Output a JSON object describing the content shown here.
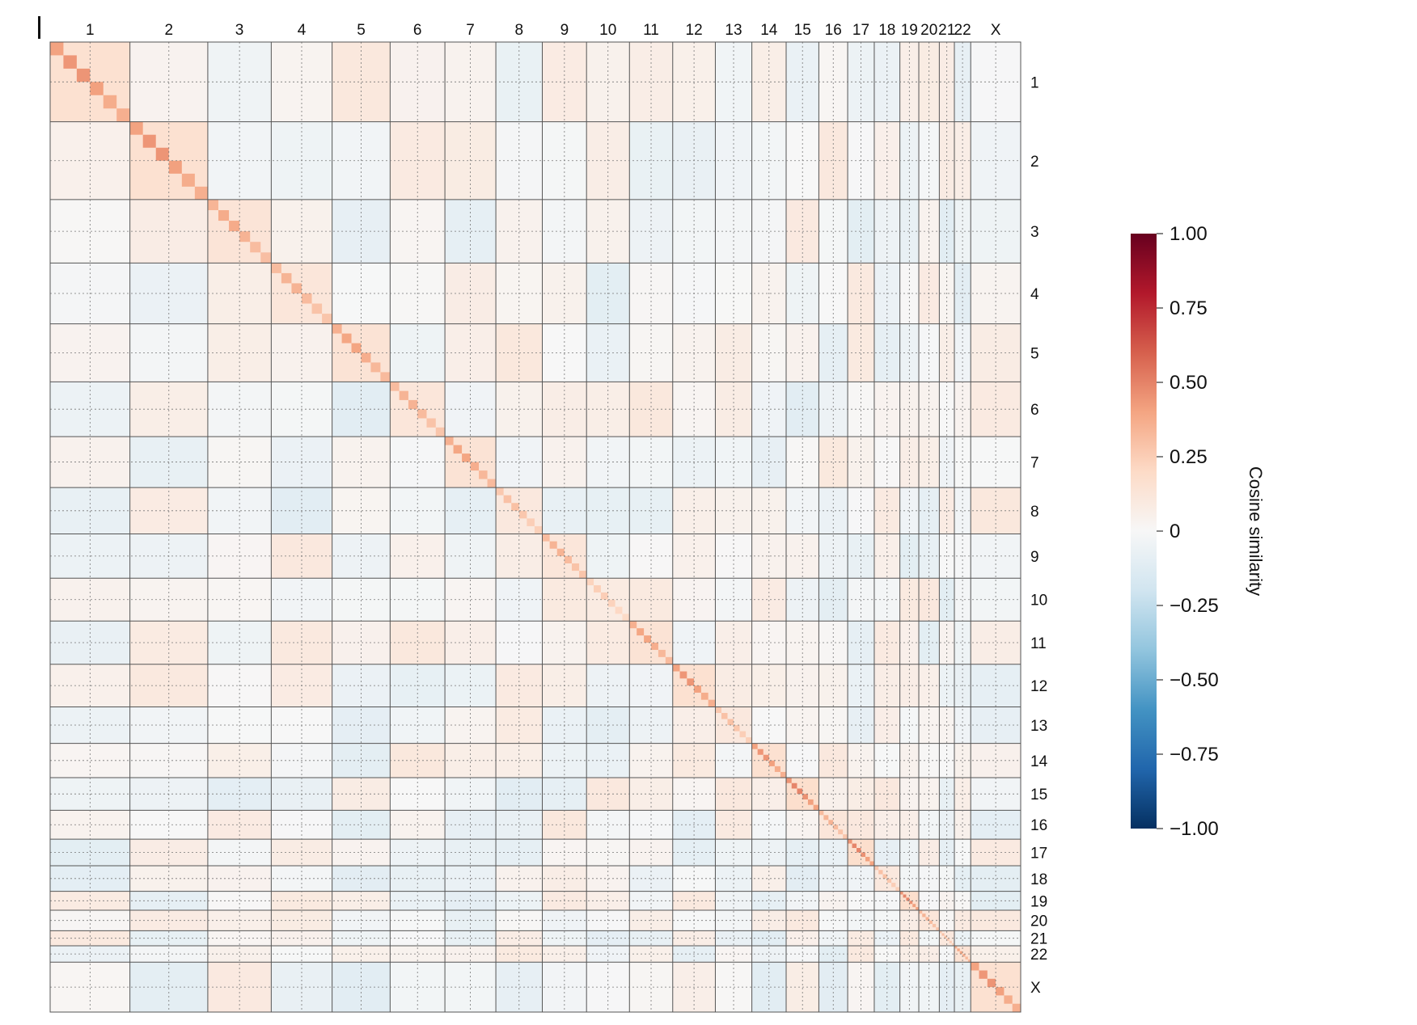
{
  "chart_data": {
    "type": "heatmap",
    "title": "",
    "xlabel": "",
    "ylabel": "",
    "categories": [
      "1",
      "2",
      "3",
      "4",
      "5",
      "6",
      "7",
      "8",
      "9",
      "10",
      "11",
      "12",
      "13",
      "14",
      "15",
      "16",
      "17",
      "18",
      "19",
      "20",
      "21",
      "22",
      "X"
    ],
    "row_categories": [
      "1",
      "2",
      "3",
      "4",
      "5",
      "6",
      "7",
      "8",
      "9",
      "10",
      "11",
      "12",
      "13",
      "14",
      "15",
      "16",
      "17",
      "18",
      "19",
      "20",
      "21",
      "22",
      "X"
    ],
    "relative_sizes": [
      249,
      243,
      198,
      190,
      181,
      171,
      159,
      145,
      138,
      134,
      135,
      133,
      114,
      107,
      102,
      90,
      83,
      80,
      59,
      64,
      47,
      51,
      156
    ],
    "diagonal_block_values": [
      0.45,
      0.45,
      0.38,
      0.35,
      0.4,
      0.35,
      0.4,
      0.3,
      0.35,
      0.25,
      0.4,
      0.45,
      0.3,
      0.45,
      0.5,
      0.35,
      0.5,
      0.3,
      0.5,
      0.35,
      0.3,
      0.4,
      0.45
    ],
    "value_range": [
      -1,
      1
    ],
    "colorbar": {
      "label": "Cosine similarity",
      "ticks": [
        1,
        0.75,
        0.5,
        0.25,
        0,
        -0.25,
        -0.5,
        -0.75,
        -1
      ],
      "tick_labels": [
        "1.00",
        "0.75",
        "0.50",
        "0.25",
        "0",
        "−0.25",
        "−0.50",
        "−0.75",
        "−1.00"
      ],
      "colors": [
        "#67001f",
        "#b2182b",
        "#d6604d",
        "#f4a582",
        "#fddbc7",
        "#f7f7f7",
        "#d1e5f0",
        "#92c5de",
        "#4393c3",
        "#2166ac",
        "#053061"
      ]
    },
    "grid": true,
    "legend_position": "right"
  }
}
